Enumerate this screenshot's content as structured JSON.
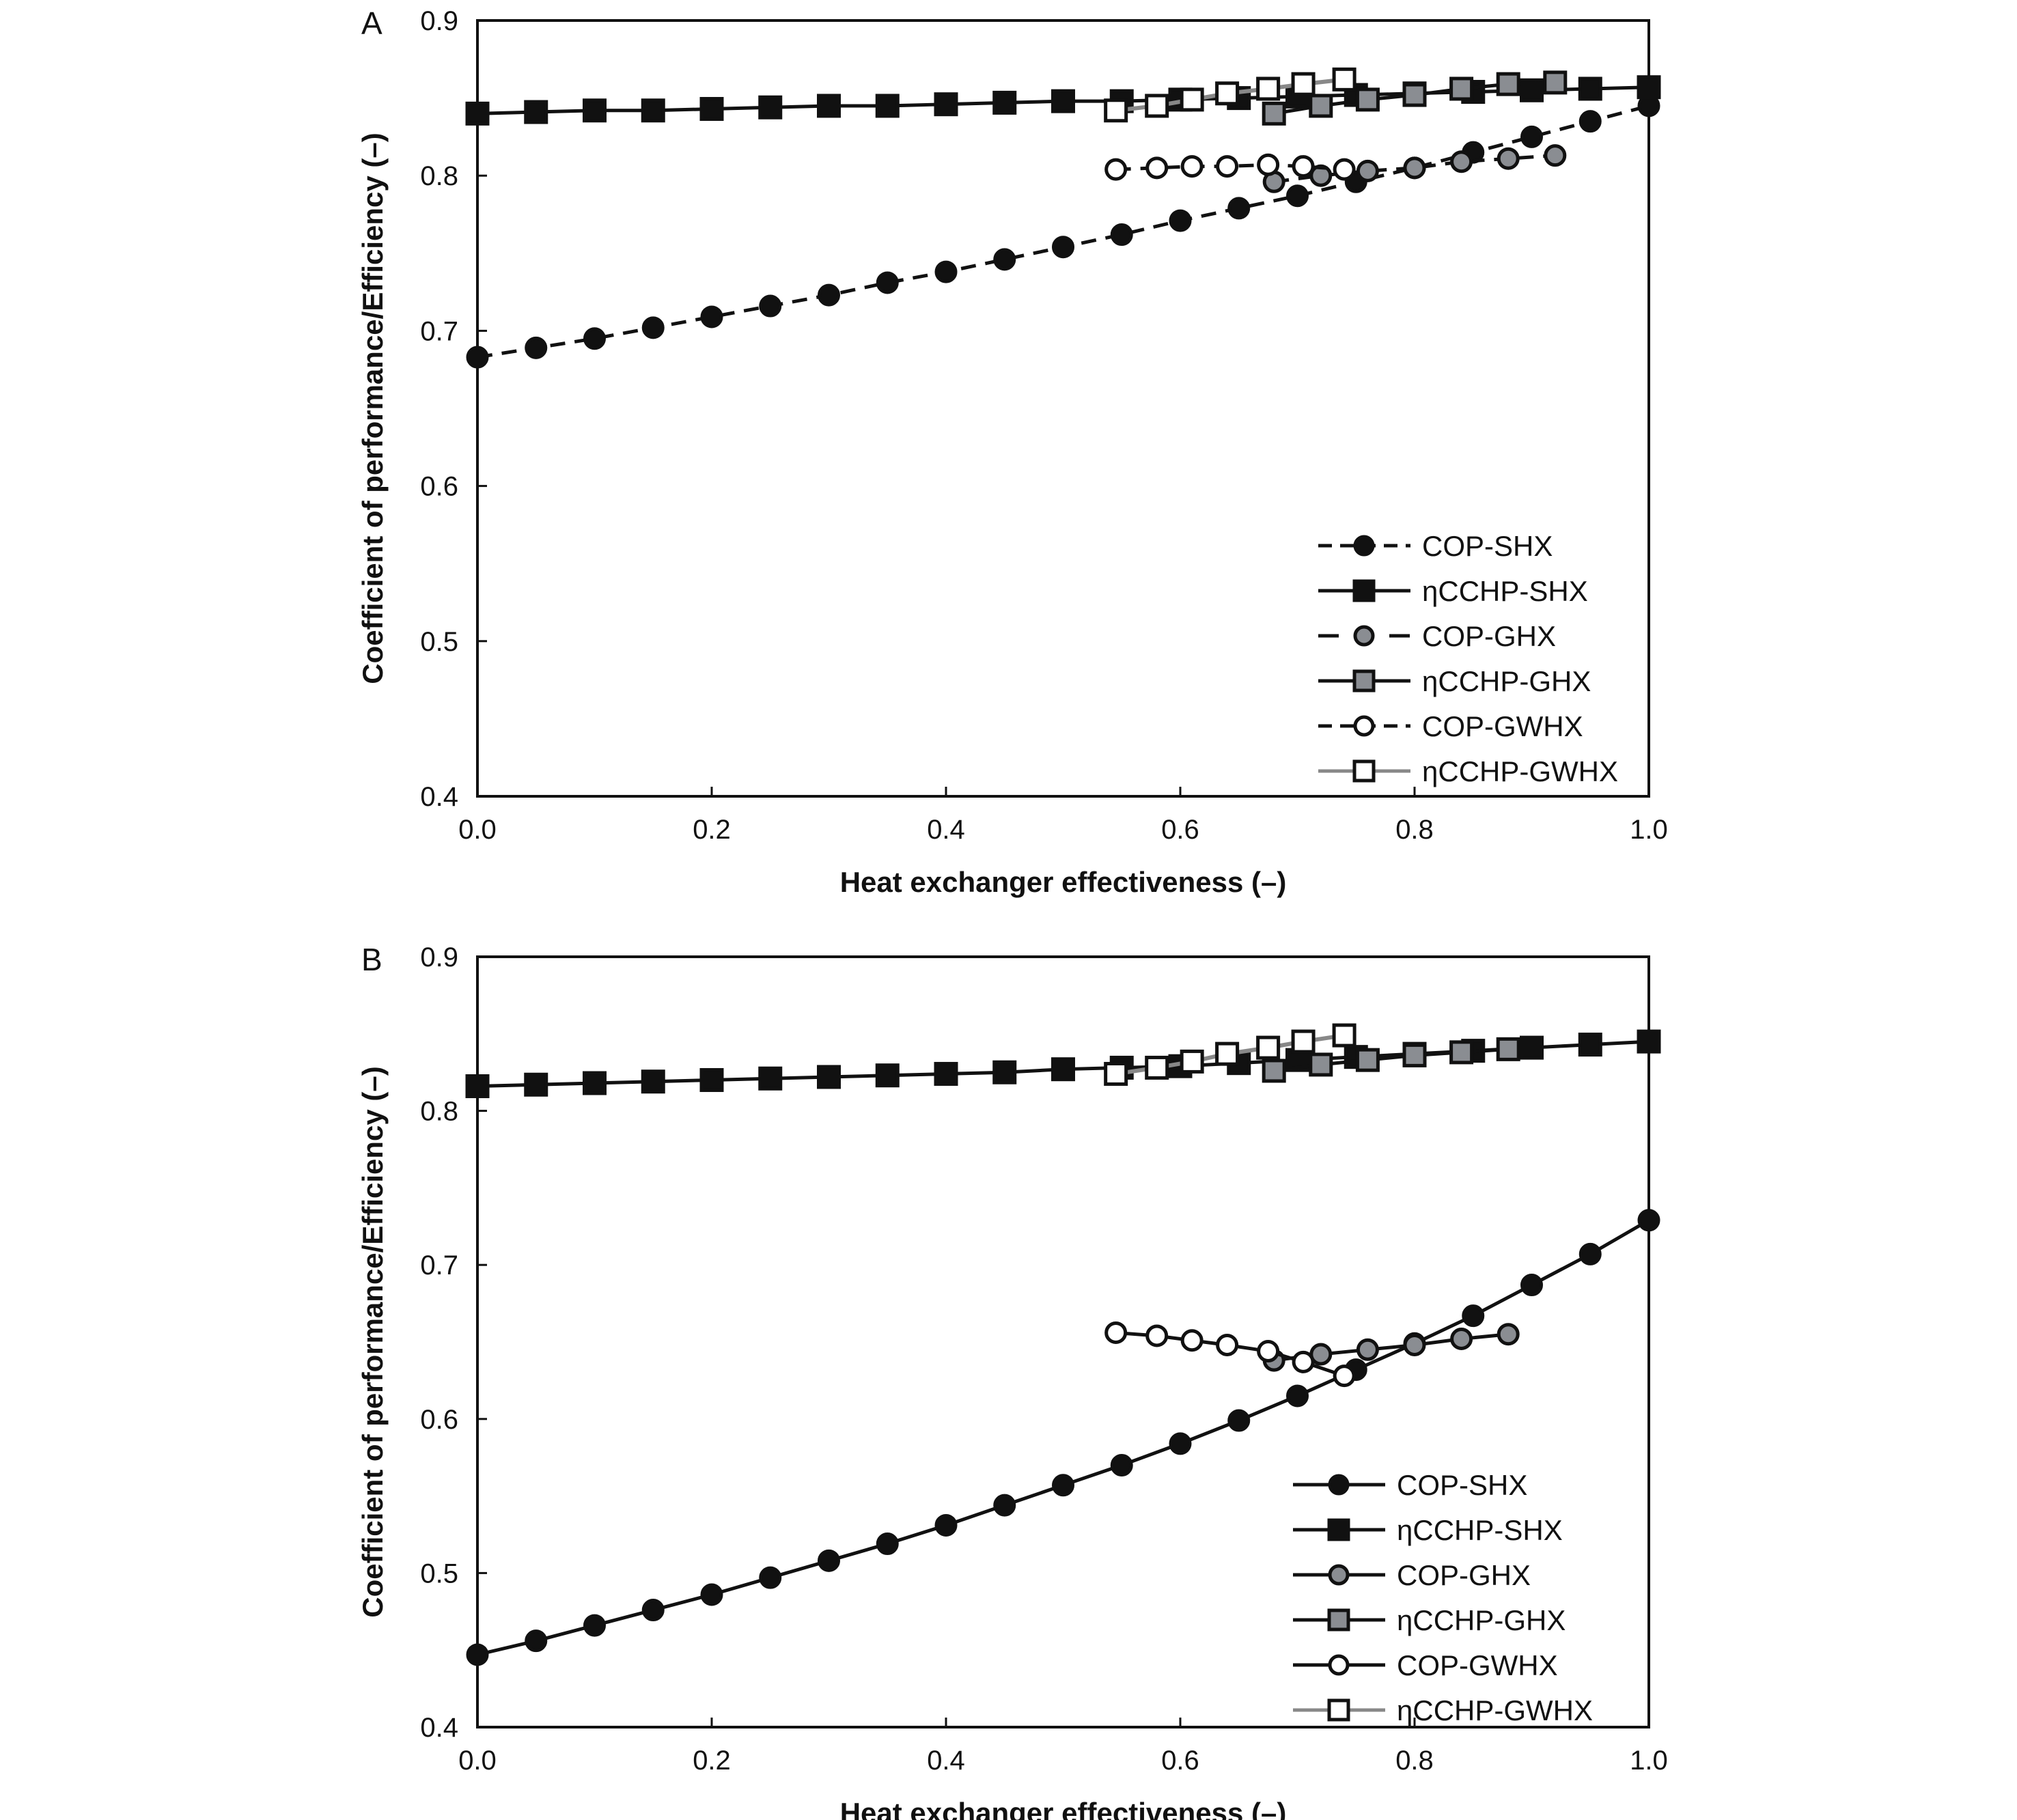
{
  "chart_data": [
    {
      "panel_label": "A",
      "type": "line",
      "xlabel": "Heat exchanger effectiveness (–)",
      "ylabel": "Coefficient of performance/Efficiency (–)",
      "xlim": [
        0,
        1
      ],
      "ylim": [
        0.4,
        0.9
      ],
      "xticks": [
        "0.0",
        "0.2",
        "0.4",
        "0.6",
        "0.8",
        "1.0"
      ],
      "yticks": [
        "0.4",
        "0.5",
        "0.6",
        "0.7",
        "0.8",
        "0.9"
      ],
      "legend_position": "bottom-right",
      "grid": false,
      "series": [
        {
          "name": "COP-SHX",
          "style": "dashed",
          "marker": "circle",
          "fill": "#111111",
          "line": "#111111",
          "x": [
            0,
            0.05,
            0.1,
            0.15,
            0.2,
            0.25,
            0.3,
            0.35,
            0.4,
            0.45,
            0.5,
            0.55,
            0.6,
            0.65,
            0.7,
            0.75,
            0.8,
            0.85,
            0.9,
            0.95,
            1.0
          ],
          "y": [
            0.683,
            0.689,
            0.695,
            0.702,
            0.709,
            0.716,
            0.723,
            0.731,
            0.738,
            0.746,
            0.754,
            0.762,
            0.771,
            0.779,
            0.787,
            0.796,
            0.805,
            0.815,
            0.825,
            0.835,
            0.845
          ]
        },
        {
          "name": "ηCCHP-SHX",
          "style": "solid",
          "marker": "square",
          "fill": "#111111",
          "line": "#111111",
          "x": [
            0,
            0.05,
            0.1,
            0.15,
            0.2,
            0.25,
            0.3,
            0.35,
            0.4,
            0.45,
            0.5,
            0.55,
            0.6,
            0.65,
            0.7,
            0.75,
            0.8,
            0.85,
            0.9,
            0.95,
            1.0
          ],
          "y": [
            0.84,
            0.841,
            0.842,
            0.842,
            0.843,
            0.844,
            0.845,
            0.845,
            0.846,
            0.847,
            0.848,
            0.848,
            0.849,
            0.85,
            0.851,
            0.852,
            0.853,
            0.854,
            0.855,
            0.856,
            0.857
          ]
        },
        {
          "name": "COP-GHX",
          "style": "dashed",
          "marker": "circle",
          "fill": "#8a8d92",
          "line": "#111111",
          "x": [
            0.68,
            0.72,
            0.76,
            0.8,
            0.84,
            0.88,
            0.92
          ],
          "y": [
            0.796,
            0.8,
            0.803,
            0.805,
            0.809,
            0.811,
            0.813
          ]
        },
        {
          "name": "ηCCHP-GHX",
          "style": "solid",
          "marker": "square",
          "fill": "#8a8d92",
          "line": "#111111",
          "x": [
            0.68,
            0.72,
            0.76,
            0.8,
            0.84,
            0.88,
            0.92
          ],
          "y": [
            0.84,
            0.845,
            0.849,
            0.852,
            0.856,
            0.859,
            0.86
          ]
        },
        {
          "name": "COP-GWHX",
          "style": "dashed",
          "marker": "circle",
          "fill": "#ffffff",
          "line": "#111111",
          "x": [
            0.545,
            0.58,
            0.61,
            0.64,
            0.675,
            0.705,
            0.74
          ],
          "y": [
            0.804,
            0.805,
            0.806,
            0.806,
            0.807,
            0.806,
            0.804
          ]
        },
        {
          "name": "ηCCHP-GWHX",
          "style": "solid",
          "marker": "square",
          "fill": "#ffffff",
          "line": "#888888",
          "x": [
            0.545,
            0.58,
            0.61,
            0.64,
            0.675,
            0.705,
            0.74
          ],
          "y": [
            0.842,
            0.845,
            0.849,
            0.853,
            0.856,
            0.859,
            0.862
          ]
        }
      ]
    },
    {
      "panel_label": "B",
      "type": "line",
      "xlabel": "Heat exchanger effectiveness (–)",
      "ylabel": "Coefficient of performance/Efficiency (–)",
      "xlim": [
        0,
        1
      ],
      "ylim": [
        0.4,
        0.9
      ],
      "xticks": [
        "0.0",
        "0.2",
        "0.4",
        "0.6",
        "0.8",
        "1.0"
      ],
      "yticks": [
        "0.4",
        "0.5",
        "0.6",
        "0.7",
        "0.8",
        "0.9"
      ],
      "legend_position": "bottom-right",
      "grid": false,
      "series": [
        {
          "name": "COP-SHX",
          "style": "solid",
          "marker": "circle",
          "fill": "#111111",
          "line": "#111111",
          "x": [
            0,
            0.05,
            0.1,
            0.15,
            0.2,
            0.25,
            0.3,
            0.35,
            0.4,
            0.45,
            0.5,
            0.55,
            0.6,
            0.65,
            0.7,
            0.75,
            0.8,
            0.85,
            0.9,
            0.95,
            1.0
          ],
          "y": [
            0.447,
            0.456,
            0.466,
            0.476,
            0.486,
            0.497,
            0.508,
            0.519,
            0.531,
            0.544,
            0.557,
            0.57,
            0.584,
            0.599,
            0.615,
            0.632,
            0.649,
            0.667,
            0.687,
            0.707,
            0.729
          ]
        },
        {
          "name": "ηCCHP-SHX",
          "style": "solid",
          "marker": "square",
          "fill": "#111111",
          "line": "#111111",
          "x": [
            0,
            0.05,
            0.1,
            0.15,
            0.2,
            0.25,
            0.3,
            0.35,
            0.4,
            0.45,
            0.5,
            0.55,
            0.6,
            0.65,
            0.7,
            0.75,
            0.8,
            0.85,
            0.9,
            0.95,
            1.0
          ],
          "y": [
            0.816,
            0.817,
            0.818,
            0.819,
            0.82,
            0.821,
            0.822,
            0.823,
            0.824,
            0.825,
            0.827,
            0.828,
            0.829,
            0.831,
            0.833,
            0.835,
            0.837,
            0.839,
            0.841,
            0.843,
            0.845
          ]
        },
        {
          "name": "COP-GHX",
          "style": "solid",
          "marker": "circle",
          "fill": "#8a8d92",
          "line": "#111111",
          "x": [
            0.68,
            0.72,
            0.76,
            0.8,
            0.84,
            0.88
          ],
          "y": [
            0.638,
            0.642,
            0.645,
            0.648,
            0.652,
            0.655
          ]
        },
        {
          "name": "ηCCHP-GHX",
          "style": "solid",
          "marker": "square",
          "fill": "#8a8d92",
          "line": "#111111",
          "x": [
            0.68,
            0.72,
            0.76,
            0.8,
            0.84,
            0.88
          ],
          "y": [
            0.826,
            0.83,
            0.833,
            0.836,
            0.838,
            0.84
          ]
        },
        {
          "name": "COP-GWHX",
          "style": "solid",
          "marker": "circle",
          "fill": "#ffffff",
          "line": "#111111",
          "x": [
            0.545,
            0.58,
            0.61,
            0.64,
            0.675,
            0.705,
            0.74
          ],
          "y": [
            0.656,
            0.654,
            0.651,
            0.648,
            0.644,
            0.637,
            0.628
          ]
        },
        {
          "name": "ηCCHP-GWHX",
          "style": "solid",
          "marker": "square",
          "fill": "#ffffff",
          "line": "#888888",
          "x": [
            0.545,
            0.58,
            0.61,
            0.64,
            0.675,
            0.705,
            0.74
          ],
          "y": [
            0.824,
            0.828,
            0.832,
            0.837,
            0.841,
            0.845,
            0.849
          ]
        }
      ]
    }
  ]
}
